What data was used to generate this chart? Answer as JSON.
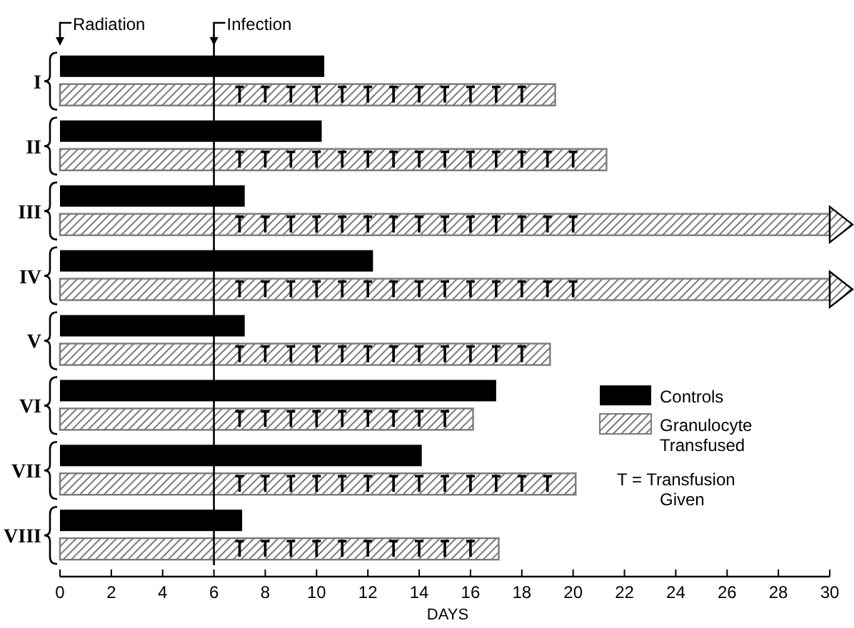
{
  "chart_data": {
    "type": "bar",
    "orientation": "horizontal",
    "xlabel": "DAYS",
    "categories": [
      "I",
      "II",
      "III",
      "IV",
      "V",
      "VI",
      "VII",
      "VIII"
    ],
    "series": [
      {
        "name": "Controls",
        "color": "#000000",
        "values": [
          10.3,
          10.2,
          7.2,
          12.2,
          7.2,
          17.0,
          14.1,
          7.1
        ]
      },
      {
        "name": "Granulocyte Transfused",
        "color": "#7a7a7a",
        "values": [
          19.3,
          21.3,
          30,
          30,
          19.1,
          16.1,
          20.1,
          17.1
        ]
      }
    ],
    "xlim": [
      0,
      30
    ],
    "xticks": [
      0,
      2,
      4,
      6,
      8,
      10,
      12,
      14,
      16,
      18,
      20,
      22,
      24,
      26,
      28,
      30
    ],
    "ref_lines": [
      {
        "axis": "x",
        "value": 0,
        "label": "Radiation"
      },
      {
        "axis": "x",
        "value": 6,
        "label": "Infection"
      }
    ],
    "annotations": [
      "T = Transfusion Given"
    ],
    "legend": "bottom right",
    "grid": false
  }
}
